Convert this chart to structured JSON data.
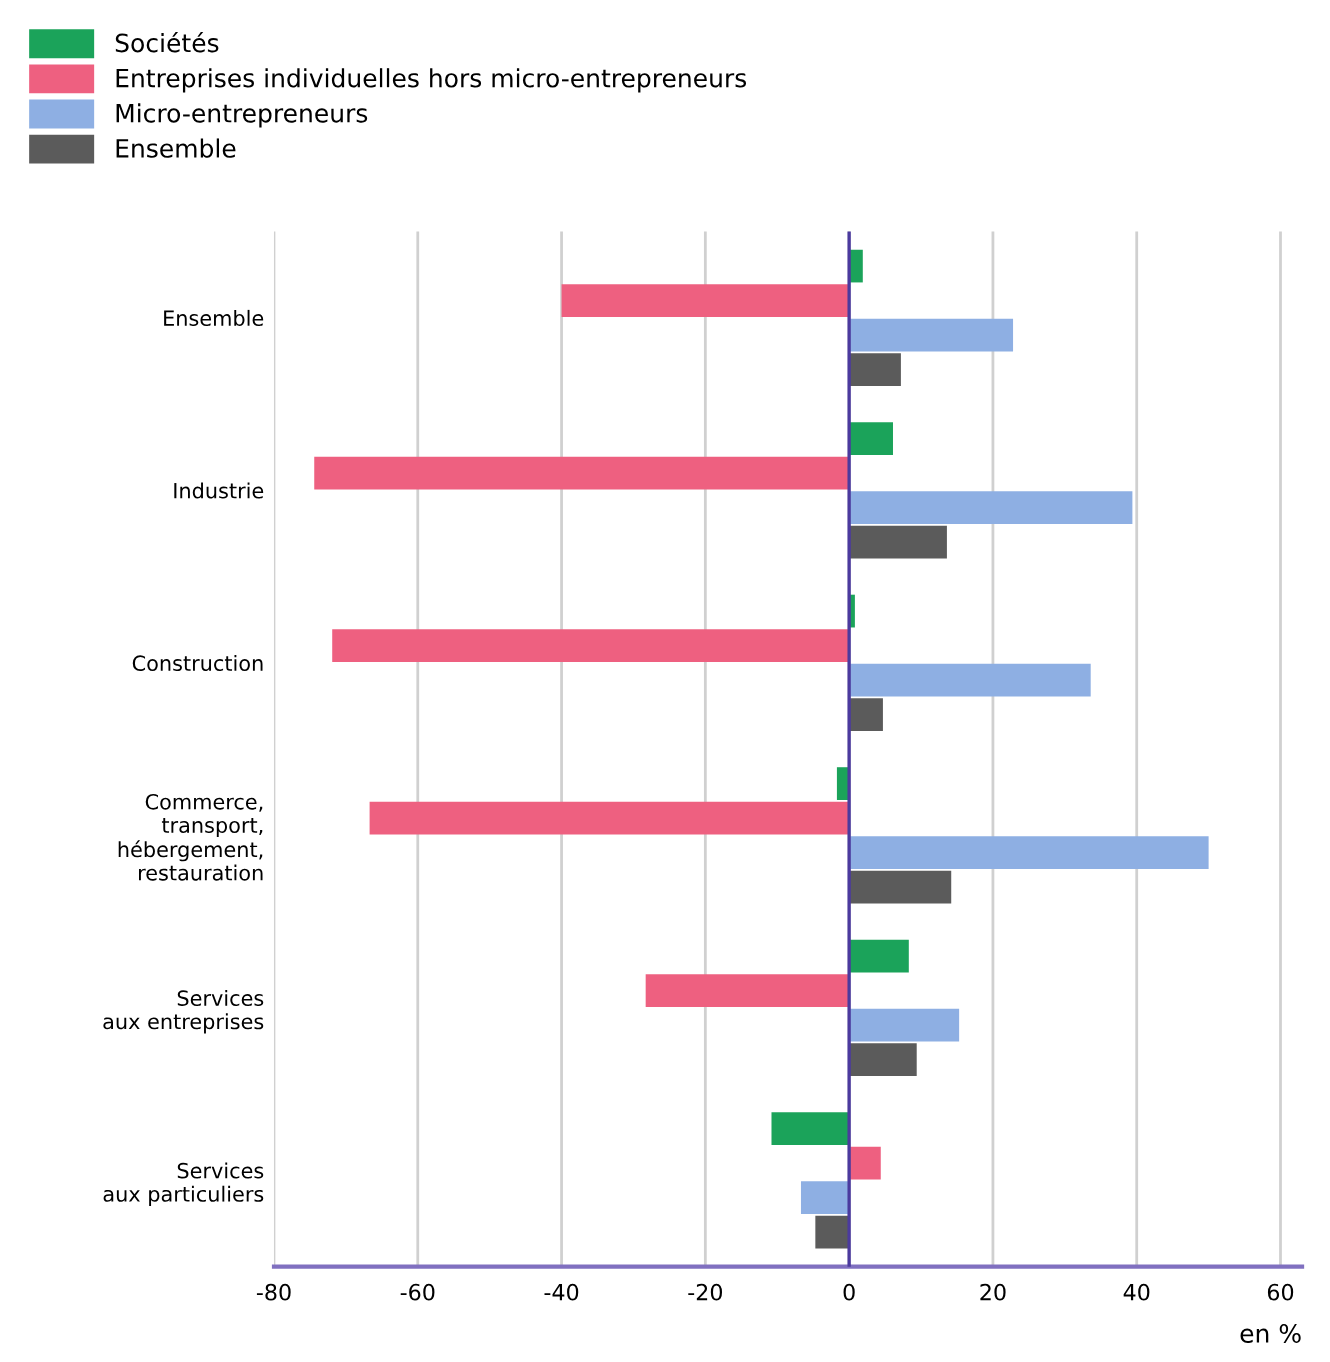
{
  "chart_data": {
    "type": "bar",
    "orientation": "horizontal",
    "xlabel": "en %",
    "categories": [
      "Ensemble",
      "Industrie",
      "Construction",
      "Commerce,\ntransport,\nhébergement,\nrestauration",
      "Services\naux entreprises",
      "Services\naux particuliers"
    ],
    "series": [
      {
        "name": "Sociétés",
        "color": "#1ba35a",
        "values": [
          1.9,
          6.1,
          0.8,
          -1.7,
          8.3,
          -10.8
        ]
      },
      {
        "name": "Entreprises individuelles hors micro-entrepreneurs",
        "color": "#ee6080",
        "values": [
          -40,
          -74.4,
          -71.9,
          -66.7,
          -28.3,
          4.4
        ]
      },
      {
        "name": "Micro-entrepreneurs",
        "color": "#8eafe3",
        "values": [
          22.8,
          39.4,
          33.6,
          50,
          15.3,
          -6.7
        ]
      },
      {
        "name": "Ensemble",
        "color": "#5b5b5b",
        "values": [
          7.2,
          13.6,
          4.7,
          14.2,
          9.4,
          -4.7
        ]
      }
    ],
    "xlim": [
      -80,
      63
    ],
    "xticks": [
      -80,
      -60,
      -40,
      -20,
      0,
      20,
      40,
      60
    ],
    "ref_lines": [
      {
        "axis": "x",
        "value": 0,
        "color": "#4b3a9e"
      }
    ],
    "grid": "x",
    "legend": "top left"
  }
}
